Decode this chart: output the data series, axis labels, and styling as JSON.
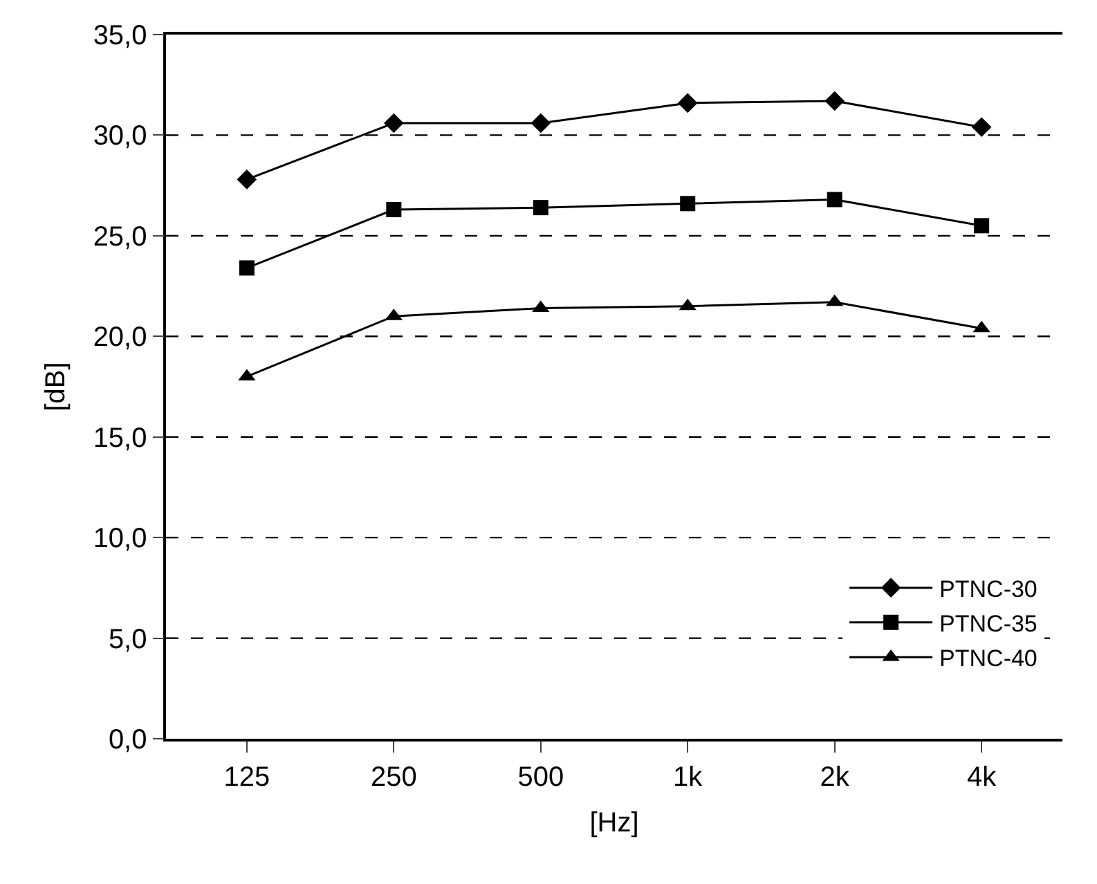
{
  "chart_data": {
    "type": "line",
    "xlabel": "[Hz]",
    "ylabel": "[dB]",
    "categories": [
      "125",
      "250",
      "500",
      "1k",
      "2k",
      "4k"
    ],
    "series": [
      {
        "name": "PTNC-30",
        "color": "#000000",
        "marker": "diamond",
        "values": [
          27.8,
          30.6,
          30.6,
          31.6,
          31.7,
          30.4
        ]
      },
      {
        "name": "PTNC-35",
        "color": "#000000",
        "marker": "square",
        "values": [
          23.4,
          26.3,
          26.4,
          26.6,
          26.8,
          25.5
        ]
      },
      {
        "name": "PTNC-40",
        "color": "#000000",
        "marker": "triangle",
        "values": [
          18.0,
          21.0,
          21.4,
          21.5,
          21.7,
          20.4
        ]
      }
    ],
    "ylim": [
      0,
      35
    ],
    "yticks": [
      {
        "value": 0,
        "label": "0,0"
      },
      {
        "value": 5,
        "label": "5,0"
      },
      {
        "value": 10,
        "label": "10,0"
      },
      {
        "value": 15,
        "label": "15,0"
      },
      {
        "value": 20,
        "label": "20,0"
      },
      {
        "value": 25,
        "label": "25,0"
      },
      {
        "value": 30,
        "label": "30,0"
      },
      {
        "value": 35,
        "label": "35,0"
      }
    ],
    "grid": "y",
    "legend": "bottom right",
    "line_style": "solid"
  }
}
